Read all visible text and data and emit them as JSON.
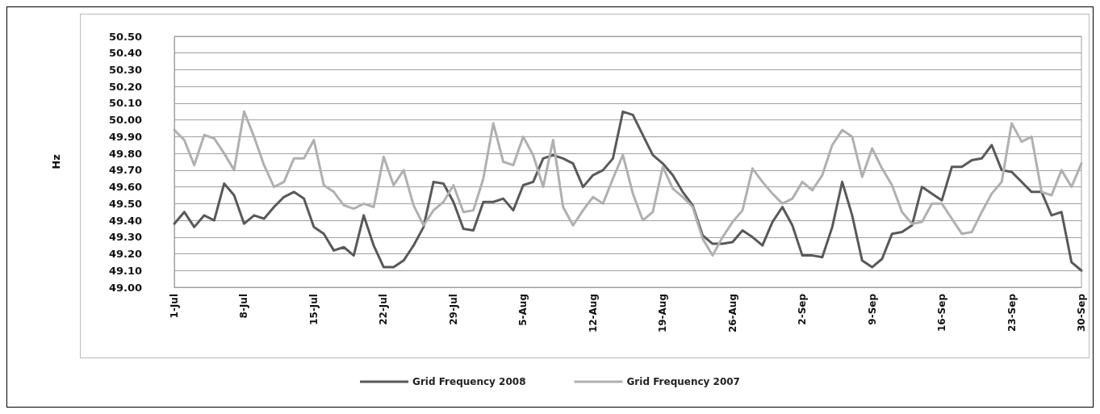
{
  "chart_data": {
    "type": "line",
    "ylabel": "Hz",
    "categories": [
      "1-Jul",
      null,
      null,
      null,
      null,
      null,
      null,
      "8-Jul",
      null,
      null,
      null,
      null,
      null,
      null,
      "15-Jul",
      null,
      null,
      null,
      null,
      null,
      null,
      "22-Jul",
      null,
      null,
      null,
      null,
      null,
      null,
      "29-Jul",
      null,
      null,
      null,
      null,
      null,
      null,
      "5-Aug",
      null,
      null,
      null,
      null,
      null,
      null,
      "12-Aug",
      null,
      null,
      null,
      null,
      null,
      null,
      "19-Aug",
      null,
      null,
      null,
      null,
      null,
      null,
      "26-Aug",
      null,
      null,
      null,
      null,
      null,
      null,
      "2-Sep",
      null,
      null,
      null,
      null,
      null,
      null,
      "9-Sep",
      null,
      null,
      null,
      null,
      null,
      null,
      "16-Sep",
      null,
      null,
      null,
      null,
      null,
      null,
      "23-Sep",
      null,
      null,
      null,
      null,
      null,
      null,
      "30-Sep"
    ],
    "series": [
      {
        "name": "Grid Frequency 2008",
        "color": "#595959",
        "values": [
          49.38,
          49.45,
          49.36,
          49.43,
          49.4,
          49.62,
          49.55,
          49.38,
          49.43,
          49.41,
          49.48,
          49.54,
          49.57,
          49.53,
          49.36,
          49.32,
          49.22,
          49.24,
          49.19,
          49.43,
          49.25,
          49.12,
          49.12,
          49.16,
          49.25,
          49.36,
          49.63,
          49.62,
          49.51,
          49.35,
          49.34,
          49.51,
          49.51,
          49.53,
          49.46,
          49.61,
          49.63,
          49.77,
          49.79,
          49.77,
          49.74,
          49.6,
          49.67,
          49.7,
          49.77,
          50.05,
          50.03,
          49.91,
          49.79,
          49.74,
          49.67,
          49.57,
          49.49,
          49.31,
          49.26,
          49.26,
          49.27,
          49.34,
          49.3,
          49.25,
          49.39,
          49.48,
          49.37,
          49.19,
          49.19,
          49.18,
          49.36,
          49.63,
          49.43,
          49.16,
          49.12,
          49.17,
          49.32,
          49.33,
          49.37,
          49.6,
          49.56,
          49.52,
          49.72,
          49.72,
          49.76,
          49.77,
          49.85,
          49.7,
          49.69,
          49.63,
          49.57,
          49.57,
          49.43,
          49.45,
          49.15,
          49.1
        ]
      },
      {
        "name": "Grid Frequency 2007",
        "color": "#b0b0b0",
        "values": [
          49.94,
          49.88,
          49.73,
          49.91,
          49.89,
          49.8,
          49.7,
          50.05,
          49.9,
          49.73,
          49.6,
          49.63,
          49.77,
          49.77,
          49.88,
          49.61,
          49.57,
          49.49,
          49.47,
          49.5,
          49.48,
          49.78,
          49.61,
          49.7,
          49.49,
          49.37,
          49.46,
          49.51,
          49.61,
          49.45,
          49.46,
          49.65,
          49.98,
          49.75,
          49.73,
          49.9,
          49.79,
          49.6,
          49.88,
          49.48,
          49.37,
          49.46,
          49.54,
          49.5,
          49.65,
          49.79,
          49.56,
          49.4,
          49.45,
          49.72,
          49.59,
          49.54,
          49.48,
          49.29,
          49.19,
          49.3,
          49.39,
          49.46,
          49.71,
          49.63,
          49.56,
          49.5,
          49.53,
          49.63,
          49.58,
          49.67,
          49.85,
          49.94,
          49.9,
          49.66,
          49.83,
          49.71,
          49.61,
          49.45,
          49.38,
          49.39,
          49.5,
          49.5,
          49.41,
          49.32,
          49.33,
          49.45,
          49.56,
          49.63,
          49.98,
          49.87,
          49.9,
          49.57,
          49.55,
          49.7,
          49.6,
          49.74
        ]
      }
    ],
    "ylim": [
      49.0,
      50.5
    ],
    "yticks": [
      {
        "value": 49.0,
        "label": "49.00"
      },
      {
        "value": 49.1,
        "label": "49.10"
      },
      {
        "value": 49.2,
        "label": "49.20"
      },
      {
        "value": 49.3,
        "label": "49.30"
      },
      {
        "value": 49.4,
        "label": "49.40"
      },
      {
        "value": 49.5,
        "label": "49.50"
      },
      {
        "value": 49.6,
        "label": "49.60"
      },
      {
        "value": 49.7,
        "label": "49.70"
      },
      {
        "value": 49.8,
        "label": "49.80"
      },
      {
        "value": 49.9,
        "label": "49.90"
      },
      {
        "value": 50.0,
        "label": "50.00"
      },
      {
        "value": 50.1,
        "label": "50.10"
      },
      {
        "value": 50.2,
        "label": "50.20"
      },
      {
        "value": 50.3,
        "label": "50.30"
      },
      {
        "value": 50.4,
        "label": "50.40"
      },
      {
        "value": 50.5,
        "label": "50.50"
      }
    ],
    "grid": "y",
    "legend": "bottom",
    "marker": "none",
    "line_style": "solid"
  }
}
